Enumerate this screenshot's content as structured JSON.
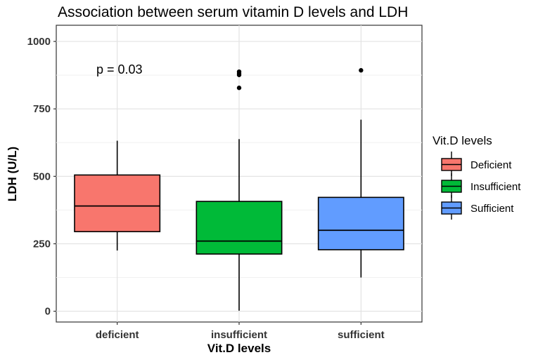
{
  "chart_data": {
    "type": "boxplot",
    "title": "Association between serum vitamin D levels and LDH",
    "xlabel": "Vit.D levels",
    "ylabel": "LDH (U/L)",
    "ylim": [
      -40,
      1060
    ],
    "yticks": [
      0,
      250,
      500,
      750,
      1000
    ],
    "ytick_labels": [
      "0",
      "250",
      "500",
      "750",
      "1000"
    ],
    "categories": [
      "deficient",
      "insufficient",
      "sufficient"
    ],
    "grid": true,
    "annotation": "p = 0.03",
    "legend": {
      "title": "Vit.D levels",
      "position": "right",
      "entries": [
        "Deficient",
        "Insufficient",
        "Sufficient"
      ]
    },
    "series": [
      {
        "name": "Deficient",
        "category": "deficient",
        "color": "#F8766D",
        "whisker_low": 225,
        "q1": 295,
        "median": 390,
        "q3": 505,
        "whisker_high": 632,
        "outliers": []
      },
      {
        "name": "Insufficient",
        "category": "insufficient",
        "color": "#00BA38",
        "whisker_low": 2,
        "q1": 212,
        "median": 260,
        "q3": 407,
        "whisker_high": 638,
        "outliers": [
          828,
          876,
          882,
          888
        ]
      },
      {
        "name": "Sufficient",
        "category": "sufficient",
        "color": "#619CFF",
        "whisker_low": 125,
        "q1": 228,
        "median": 300,
        "q3": 422,
        "whisker_high": 710,
        "outliers": [
          893
        ]
      }
    ]
  }
}
